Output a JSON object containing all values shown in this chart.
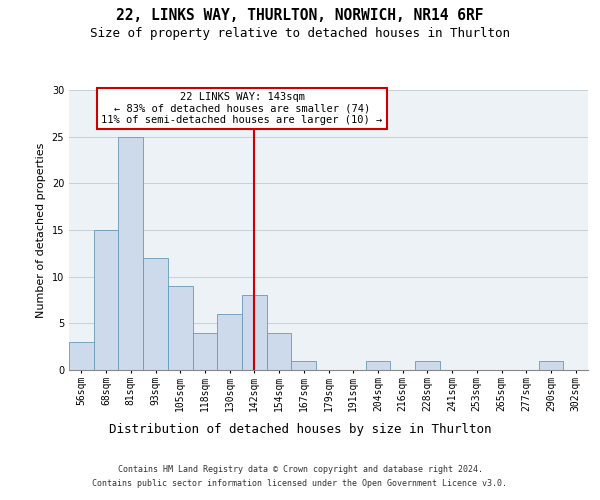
{
  "title1": "22, LINKS WAY, THURLTON, NORWICH, NR14 6RF",
  "title2": "Size of property relative to detached houses in Thurlton",
  "xlabel": "Distribution of detached houses by size in Thurlton",
  "ylabel": "Number of detached properties",
  "footer1": "Contains HM Land Registry data © Crown copyright and database right 2024.",
  "footer2": "Contains public sector information licensed under the Open Government Licence v3.0.",
  "bar_labels": [
    "56sqm",
    "68sqm",
    "81sqm",
    "93sqm",
    "105sqm",
    "118sqm",
    "130sqm",
    "142sqm",
    "154sqm",
    "167sqm",
    "179sqm",
    "191sqm",
    "204sqm",
    "216sqm",
    "228sqm",
    "241sqm",
    "253sqm",
    "265sqm",
    "277sqm",
    "290sqm",
    "302sqm"
  ],
  "bar_heights": [
    3,
    15,
    25,
    12,
    9,
    4,
    6,
    8,
    4,
    1,
    0,
    0,
    1,
    0,
    1,
    0,
    0,
    0,
    0,
    1,
    0
  ],
  "bar_color": "#ccdaeb",
  "bar_edgecolor": "#6699bb",
  "property_line_index": 7,
  "annotation_line1": "22 LINKS WAY: 143sqm",
  "annotation_line2": "← 83% of detached houses are smaller (74)",
  "annotation_line3": "11% of semi-detached houses are larger (10) →",
  "annotation_box_edgecolor": "#cc0000",
  "vline_color": "#cc0000",
  "ylim_max": 30,
  "yticks": [
    0,
    5,
    10,
    15,
    20,
    25,
    30
  ],
  "grid_color": "#c8d0d8",
  "bg_color": "#edf2f7",
  "title1_fontsize": 10.5,
  "title2_fontsize": 9,
  "xlabel_fontsize": 9,
  "ylabel_fontsize": 8,
  "tick_fontsize": 7,
  "annotation_fontsize": 7.5,
  "footer_fontsize": 6
}
